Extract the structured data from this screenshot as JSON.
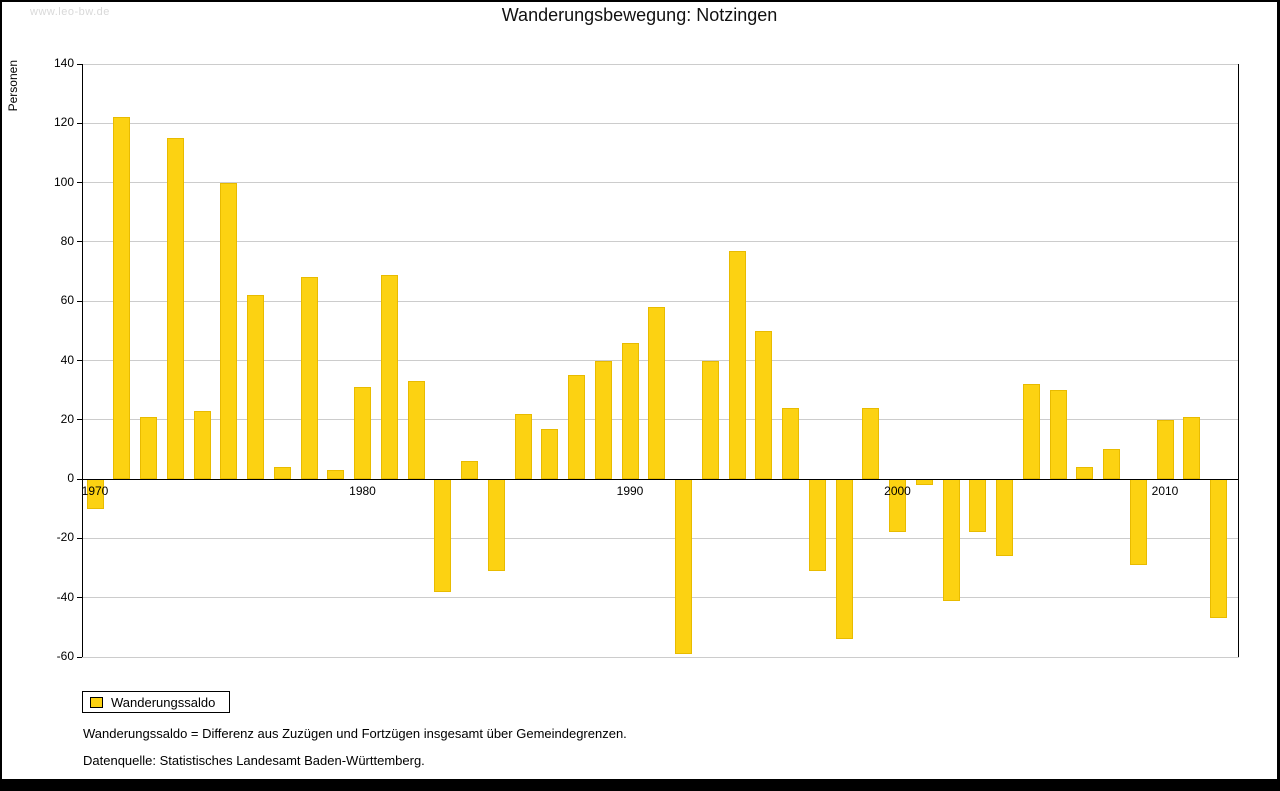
{
  "page": {
    "watermark": "www.leo-bw.de",
    "notes": [
      "Wanderungssaldo = Differenz aus Zuzügen und Fortzügen insgesamt über Gemeindegrenzen.",
      "Datenquelle: Statistisches Landesamt Baden-Württemberg."
    ]
  },
  "chart_data": {
    "type": "bar",
    "title": "Wanderungsbewegung: Notzingen",
    "ylabel": "Personen",
    "xlabel": "",
    "legend_label": "Wanderungssaldo",
    "legend_position": "bottom-left",
    "bar_color": "#FCD212",
    "grid": true,
    "ylim": [
      -60,
      140
    ],
    "ytick_step": 20,
    "xticks": [
      1970,
      1980,
      1990,
      2000,
      2010
    ],
    "x": [
      1970,
      1971,
      1972,
      1973,
      1974,
      1975,
      1976,
      1977,
      1978,
      1979,
      1980,
      1981,
      1982,
      1983,
      1984,
      1985,
      1986,
      1987,
      1988,
      1989,
      1990,
      1991,
      1992,
      1993,
      1994,
      1995,
      1996,
      1997,
      1998,
      1999,
      2000,
      2001,
      2002,
      2003,
      2004,
      2005,
      2006,
      2007,
      2008,
      2009,
      2010,
      2011,
      2012
    ],
    "values": [
      -10,
      122,
      21,
      115,
      23,
      100,
      62,
      4,
      68,
      3,
      31,
      69,
      33,
      -38,
      6,
      -31,
      22,
      17,
      35,
      40,
      46,
      58,
      -59,
      40,
      77,
      50,
      24,
      -31,
      -54,
      24,
      -18,
      -2,
      -41,
      -18,
      -26,
      32,
      30,
      4,
      10,
      -29,
      20,
      21,
      -47
    ]
  }
}
